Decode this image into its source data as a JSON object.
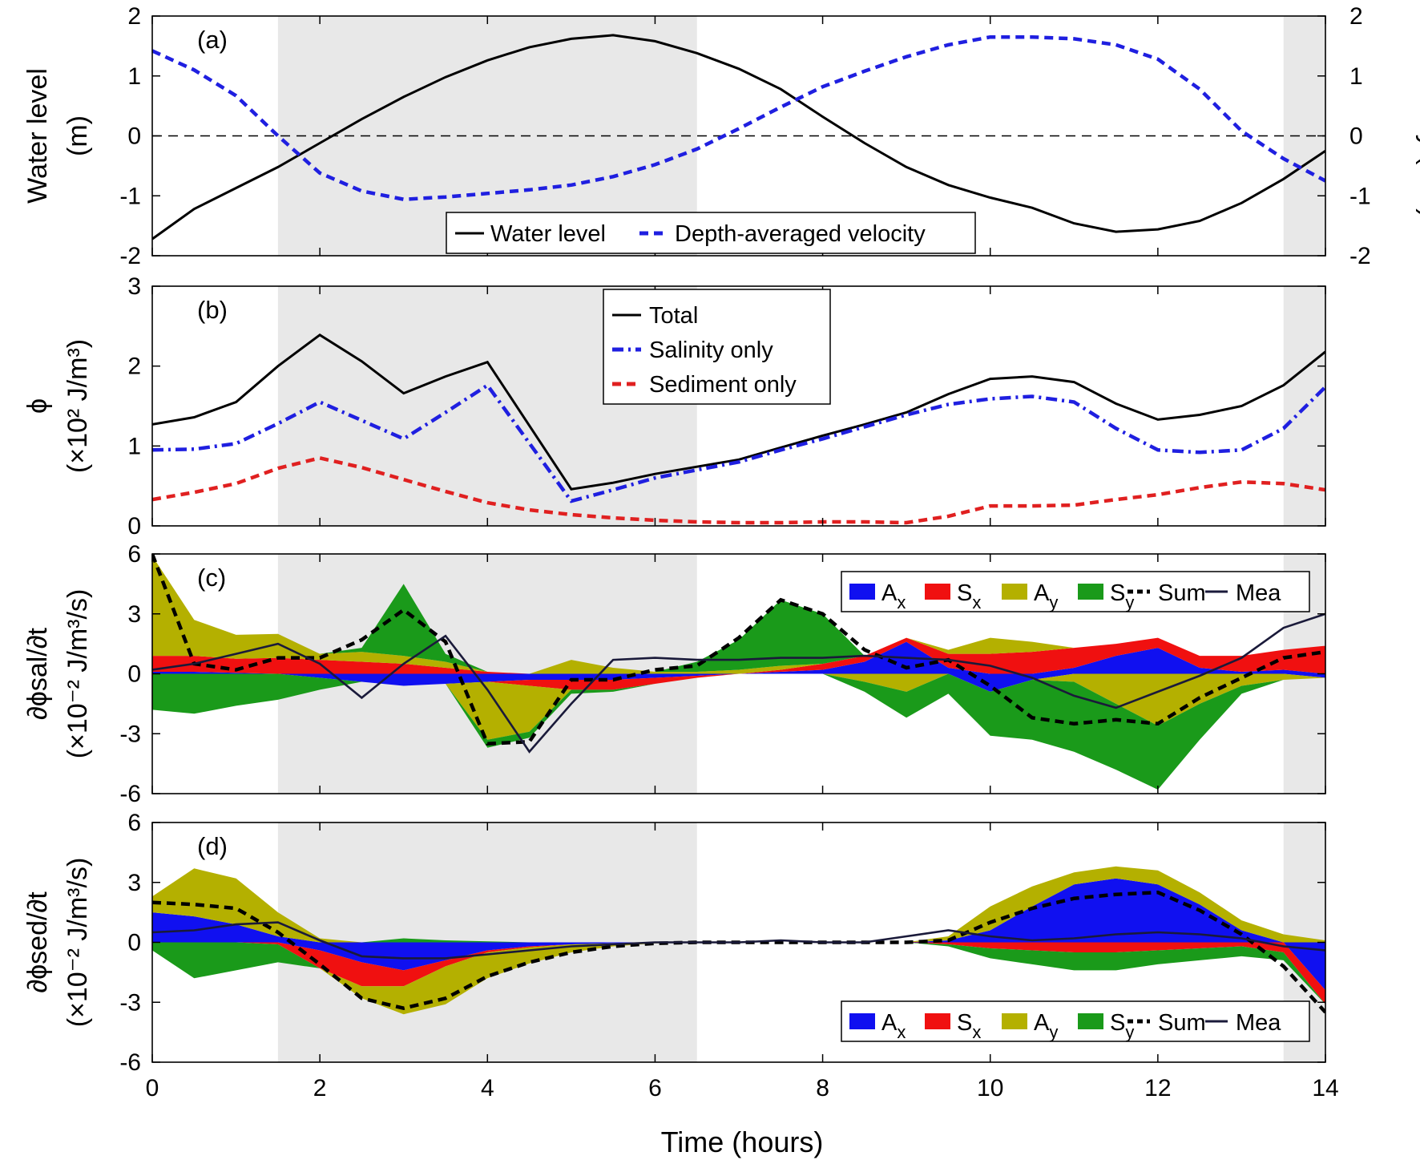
{
  "figure": {
    "xlabel": "Time (hours)"
  },
  "chart_data": [
    {
      "id": "a",
      "type": "line",
      "panel_label": "(a)",
      "xlim": [
        0,
        14
      ],
      "x_ticks": [
        "0",
        "2",
        "4",
        "6",
        "8",
        "10",
        "12",
        "14"
      ],
      "ylim": [
        -2,
        2
      ],
      "y_ticks": [
        "-2",
        "-1",
        "0",
        "1",
        "2"
      ],
      "ylabel_lines": [
        "Water level",
        "(m)"
      ],
      "y2label": "Velocity (m/s)",
      "y2lim": [
        -2,
        2
      ],
      "y2_ticks": [
        "-2",
        "-1",
        "0",
        "1",
        "2"
      ],
      "shaded_ranges": [
        [
          1.5,
          6.5
        ],
        [
          13.5,
          14
        ]
      ],
      "zero_line": true,
      "legend_location": "bottom-center",
      "series": [
        {
          "name": "Water level",
          "color": "#000000",
          "style": "solid",
          "legend": "Water level",
          "x": [
            0,
            0.5,
            1,
            1.5,
            2,
            2.5,
            3,
            3.5,
            4,
            4.5,
            5,
            5.5,
            6,
            6.5,
            7,
            7.5,
            8,
            8.5,
            9,
            9.5,
            10,
            10.5,
            11,
            11.5,
            12,
            12.5,
            13,
            13.5,
            14
          ],
          "y": [
            -1.72,
            -1.22,
            -0.87,
            -0.52,
            -0.12,
            0.28,
            0.65,
            0.98,
            1.26,
            1.48,
            1.62,
            1.68,
            1.58,
            1.38,
            1.12,
            0.78,
            0.32,
            -0.12,
            -0.52,
            -0.82,
            -1.03,
            -1.2,
            -1.46,
            -1.6,
            -1.56,
            -1.42,
            -1.12,
            -0.72,
            -0.25
          ]
        },
        {
          "name": "Depth-averaged velocity",
          "color": "#1f1fe0",
          "style": "dashed",
          "axis": "right",
          "legend": "Depth-averaged velocity",
          "x": [
            0,
            0.5,
            1,
            1.5,
            2,
            2.5,
            3,
            3.5,
            4,
            4.5,
            5,
            5.5,
            6,
            6.5,
            7,
            7.5,
            8,
            8.5,
            9,
            9.5,
            10,
            10.5,
            11,
            11.5,
            12,
            12.5,
            13,
            13.5,
            14
          ],
          "y": [
            1.42,
            1.1,
            0.67,
            0.0,
            -0.62,
            -0.92,
            -1.06,
            -1.02,
            -0.96,
            -0.9,
            -0.82,
            -0.68,
            -0.48,
            -0.22,
            0.12,
            0.48,
            0.82,
            1.08,
            1.32,
            1.52,
            1.65,
            1.65,
            1.62,
            1.52,
            1.28,
            0.78,
            0.08,
            -0.38,
            -0.75
          ]
        }
      ]
    },
    {
      "id": "b",
      "type": "line",
      "panel_label": "(b)",
      "xlim": [
        0,
        14
      ],
      "x_ticks": [
        "0",
        "2",
        "4",
        "6",
        "8",
        "10",
        "12",
        "14"
      ],
      "ylim": [
        0,
        3
      ],
      "y_ticks": [
        "0",
        "1",
        "2",
        "3"
      ],
      "ylabel_lines": [
        "ϕ",
        "(×10² J/m³)"
      ],
      "shaded_ranges": [
        [
          1.5,
          6.5
        ],
        [
          13.5,
          14
        ]
      ],
      "legend_location": "top-center",
      "series": [
        {
          "name": "Total",
          "color": "#000000",
          "style": "solid",
          "legend": "Total",
          "x": [
            0,
            0.5,
            1,
            1.5,
            2,
            2.5,
            3,
            3.5,
            4,
            5,
            5.5,
            6,
            6.5,
            7,
            7.5,
            8,
            8.5,
            9,
            9.5,
            10,
            10.5,
            11,
            11.5,
            12,
            12.5,
            13,
            13.5,
            14
          ],
          "y": [
            1.27,
            1.36,
            1.55,
            2.0,
            2.39,
            2.06,
            1.66,
            1.87,
            2.05,
            0.46,
            0.54,
            0.65,
            0.74,
            0.83,
            0.98,
            1.13,
            1.27,
            1.42,
            1.65,
            1.84,
            1.87,
            1.8,
            1.53,
            1.33,
            1.39,
            1.5,
            1.76,
            2.18
          ]
        },
        {
          "name": "Salinity only",
          "color": "#1f1fe0",
          "style": "dashdot",
          "legend": "Salinity only",
          "x": [
            0,
            0.5,
            1,
            1.5,
            2,
            2.5,
            3,
            3.5,
            4,
            5,
            5.5,
            6,
            6.5,
            7,
            7.5,
            8,
            8.5,
            9,
            9.5,
            10,
            10.5,
            11,
            11.5,
            12,
            12.5,
            13,
            13.5,
            14
          ],
          "y": [
            0.95,
            0.96,
            1.03,
            1.28,
            1.55,
            1.32,
            1.09,
            1.42,
            1.76,
            0.31,
            0.45,
            0.6,
            0.7,
            0.8,
            0.95,
            1.09,
            1.24,
            1.39,
            1.52,
            1.59,
            1.62,
            1.55,
            1.22,
            0.95,
            0.92,
            0.95,
            1.22,
            1.74
          ]
        },
        {
          "name": "Sediment only",
          "color": "#e02020",
          "style": "dashed",
          "legend": "Sediment only",
          "x": [
            0,
            0.5,
            1,
            1.5,
            2,
            2.5,
            3,
            3.5,
            4,
            4.5,
            5,
            5.5,
            6,
            6.5,
            7,
            7.5,
            8,
            8.5,
            9,
            9.5,
            10,
            10.5,
            11,
            11.5,
            12,
            12.5,
            13,
            13.5,
            14
          ],
          "y": [
            0.33,
            0.42,
            0.53,
            0.72,
            0.85,
            0.73,
            0.58,
            0.43,
            0.29,
            0.2,
            0.14,
            0.1,
            0.07,
            0.05,
            0.04,
            0.04,
            0.05,
            0.05,
            0.04,
            0.12,
            0.25,
            0.25,
            0.26,
            0.33,
            0.39,
            0.48,
            0.55,
            0.53,
            0.45
          ]
        }
      ]
    },
    {
      "id": "c",
      "type": "area",
      "panel_label": "(c)",
      "xlim": [
        0,
        14
      ],
      "x_ticks": [
        "0",
        "2",
        "4",
        "6",
        "8",
        "10",
        "12",
        "14"
      ],
      "ylim": [
        -6,
        6
      ],
      "y_ticks": [
        "-6",
        "-3",
        "0",
        "3",
        "6"
      ],
      "ylabel_lines": [
        "∂ϕsal/∂t",
        "(×10⁻² J/m³/s)"
      ],
      "shaded_ranges": [
        [
          1.5,
          6.5
        ],
        [
          13.5,
          14
        ]
      ],
      "legend_location": "top-right",
      "legend": [
        "Ax",
        "Sx",
        "Ay",
        "Sy",
        "Sum",
        "Mea"
      ],
      "x": [
        0,
        0.5,
        1,
        1.5,
        2,
        2.5,
        3,
        3.5,
        4,
        4.5,
        5,
        5.5,
        6,
        6.5,
        7,
        7.5,
        8,
        8.5,
        9,
        9.5,
        10,
        10.5,
        11,
        11.5,
        12,
        12.5,
        13,
        13.5,
        14
      ],
      "series": [
        {
          "name": "Ax",
          "color": "#1010f0",
          "values": [
            0.1,
            0.1,
            0.05,
            0.0,
            -0.2,
            -0.4,
            -0.6,
            -0.5,
            -0.4,
            -0.3,
            -0.3,
            -0.3,
            -0.2,
            -0.1,
            0.0,
            0.1,
            0.2,
            0.6,
            1.6,
            0.3,
            -0.9,
            -0.3,
            0.3,
            0.9,
            1.3,
            0.3,
            0.1,
            0.2,
            -0.2
          ]
        },
        {
          "name": "Sx",
          "color": "#f01010",
          "values": [
            0.8,
            0.8,
            0.7,
            0.8,
            0.7,
            0.6,
            0.5,
            0.3,
            0.1,
            -0.3,
            -0.5,
            -0.5,
            -0.3,
            -0.1,
            0.0,
            0.1,
            0.3,
            0.3,
            0.2,
            0.7,
            1.0,
            1.1,
            1.0,
            0.6,
            0.5,
            0.6,
            0.8,
            1.0,
            1.4
          ]
        },
        {
          "name": "Ay",
          "color": "#b4b000",
          "values": [
            5.0,
            1.8,
            1.2,
            1.2,
            0.3,
            0.5,
            0.4,
            0.3,
            -2.9,
            -2.3,
            0.7,
            0.3,
            0.1,
            0.1,
            0.2,
            0.2,
            0.0,
            -0.4,
            -0.9,
            0.2,
            0.8,
            0.5,
            -0.4,
            -1.5,
            -2.6,
            -1.5,
            -0.6,
            -0.3,
            0.0
          ]
        },
        {
          "name": "Sy",
          "color": "#1a9a1a",
          "values": [
            -1.8,
            -2.0,
            -1.6,
            -1.3,
            -0.6,
            0.2,
            3.6,
            0.4,
            -0.4,
            -0.3,
            -0.2,
            -0.1,
            0.0,
            0.5,
            1.5,
            3.3,
            2.5,
            -0.5,
            -1.3,
            -1.0,
            -2.2,
            -3.0,
            -3.5,
            -3.3,
            -3.2,
            -1.8,
            -0.4,
            0.0,
            0.0
          ]
        },
        {
          "name": "Sum",
          "color": "#000000",
          "style": "dashed",
          "line": true,
          "values": [
            6.0,
            0.5,
            0.2,
            0.8,
            0.8,
            1.7,
            3.2,
            1.6,
            -3.5,
            -3.4,
            -0.3,
            -0.3,
            0.2,
            0.4,
            1.8,
            3.7,
            3.0,
            1.2,
            0.3,
            0.7,
            -0.6,
            -2.2,
            -2.5,
            -2.3,
            -2.5,
            -1.2,
            -0.2,
            0.8,
            1.1
          ]
        },
        {
          "name": "Mea",
          "color": "#1a1a3a",
          "style": "solid",
          "line": true,
          "values": [
            0.2,
            0.5,
            1.0,
            1.5,
            0.5,
            -1.2,
            0.5,
            1.9,
            -0.8,
            -3.9,
            -1.5,
            0.7,
            0.8,
            0.7,
            0.7,
            0.8,
            0.8,
            0.9,
            0.8,
            0.7,
            0.4,
            -0.2,
            -1.1,
            -1.7,
            -0.9,
            -0.1,
            0.8,
            2.3,
            3.0
          ]
        }
      ]
    },
    {
      "id": "d",
      "type": "area",
      "panel_label": "(d)",
      "xlim": [
        0,
        14
      ],
      "x_ticks": [
        "0",
        "2",
        "4",
        "6",
        "8",
        "10",
        "12",
        "14"
      ],
      "ylim": [
        -6,
        6
      ],
      "y_ticks": [
        "-6",
        "-3",
        "0",
        "3",
        "6"
      ],
      "ylabel_lines": [
        "∂ϕsed/∂t",
        "(×10⁻² J/m³/s)"
      ],
      "shaded_ranges": [
        [
          1.5,
          6.5
        ],
        [
          13.5,
          14
        ]
      ],
      "legend_location": "bottom-right",
      "legend": [
        "Ax",
        "Sx",
        "Ay",
        "Sy",
        "Sum",
        "Mea"
      ],
      "x": [
        0,
        0.5,
        1,
        1.5,
        2,
        2.5,
        3,
        3.5,
        4,
        4.5,
        5,
        5.5,
        6,
        6.5,
        7,
        7.5,
        8,
        8.5,
        9,
        9.5,
        10,
        10.5,
        11,
        11.5,
        12,
        12.5,
        13,
        13.5,
        14
      ],
      "series": [
        {
          "name": "Ax",
          "color": "#1010f0",
          "values": [
            1.5,
            1.3,
            0.9,
            0.3,
            -0.4,
            -1.0,
            -1.4,
            -0.9,
            -0.4,
            -0.2,
            -0.1,
            -0.05,
            0.0,
            0.0,
            0.0,
            0.0,
            0.0,
            0.0,
            0.0,
            0.1,
            0.6,
            1.8,
            2.9,
            3.2,
            2.9,
            1.9,
            0.6,
            0.0,
            -2.4
          ]
        },
        {
          "name": "Sx",
          "color": "#f01010",
          "values": [
            0.0,
            0.0,
            0.0,
            -0.1,
            -0.9,
            -1.2,
            -0.8,
            -0.3,
            -0.1,
            -0.05,
            0.0,
            0.0,
            0.0,
            0.0,
            0.0,
            0.0,
            0.0,
            0.0,
            0.0,
            -0.1,
            -0.3,
            -0.4,
            -0.5,
            -0.5,
            -0.4,
            -0.3,
            -0.2,
            -0.5,
            -0.7
          ]
        },
        {
          "name": "Ay",
          "color": "#b4b000",
          "values": [
            0.8,
            2.4,
            2.3,
            1.2,
            0.2,
            -0.6,
            -1.4,
            -1.9,
            -1.3,
            -0.8,
            -0.4,
            -0.15,
            -0.05,
            0.0,
            0.0,
            0.0,
            0.0,
            0.0,
            0.0,
            0.2,
            1.2,
            1.0,
            0.6,
            0.6,
            0.7,
            0.6,
            0.5,
            0.4,
            0.1
          ]
        },
        {
          "name": "Sy",
          "color": "#1a9a1a",
          "values": [
            -0.4,
            -1.8,
            -1.4,
            -0.9,
            0.0,
            0.0,
            0.2,
            0.1,
            0.05,
            0.0,
            0.0,
            0.0,
            0.0,
            0.0,
            0.0,
            0.0,
            0.0,
            0.0,
            0.0,
            -0.1,
            -0.5,
            -0.7,
            -0.9,
            -0.9,
            -0.7,
            -0.6,
            -0.5,
            -0.4,
            0.0
          ]
        },
        {
          "name": "Sum",
          "color": "#000000",
          "style": "dashed",
          "line": true,
          "values": [
            2.0,
            1.9,
            1.7,
            0.5,
            -1.1,
            -2.8,
            -3.3,
            -2.8,
            -1.7,
            -1.0,
            -0.5,
            -0.2,
            -0.05,
            0.0,
            0.0,
            0.0,
            0.0,
            0.0,
            0.0,
            0.1,
            1.0,
            1.7,
            2.2,
            2.4,
            2.5,
            1.6,
            0.4,
            -1.2,
            -3.5
          ]
        },
        {
          "name": "Mea",
          "color": "#1a1a3a",
          "style": "solid",
          "line": true,
          "values": [
            0.5,
            0.6,
            0.9,
            1.0,
            0.1,
            -0.7,
            -0.8,
            -0.8,
            -0.6,
            -0.4,
            -0.2,
            -0.1,
            0.0,
            0.0,
            0.0,
            0.1,
            0.0,
            0.0,
            0.3,
            0.6,
            0.3,
            0.1,
            0.2,
            0.4,
            0.5,
            0.4,
            0.2,
            -0.2,
            -0.4
          ]
        }
      ]
    }
  ]
}
